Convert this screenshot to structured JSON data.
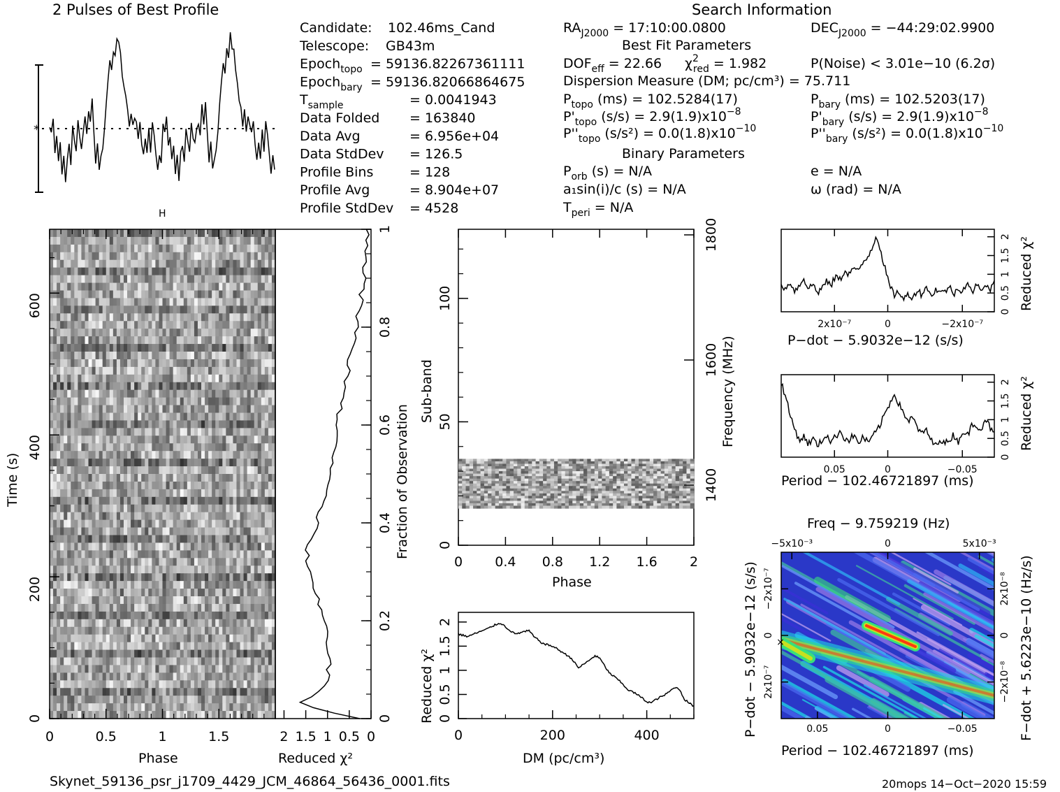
{
  "header": {
    "profile_title": "2 Pulses of Best Profile",
    "search_title": "Search Information",
    "best_fit_title": "Best Fit Parameters",
    "binary_title": "Binary Parameters"
  },
  "info_left": [
    {
      "label": "Candidate:",
      "value": "102.46ms_Cand"
    },
    {
      "label": "Telescope:",
      "value": "GB43m"
    },
    {
      "label": "Epoch",
      "sub": "topo",
      "value": "= 59136.82267361111"
    },
    {
      "label": "Epoch",
      "sub": "bary",
      "value": "= 59136.82066864675"
    },
    {
      "label": "T",
      "sub": "sample",
      "value": "=   0.0041943"
    },
    {
      "label": "Data Folded",
      "value": "=   163840"
    },
    {
      "label": "Data Avg",
      "value": "=   6.956e+04"
    },
    {
      "label": "Data StdDev",
      "value": "=   126.5"
    },
    {
      "label": "Profile Bins",
      "value": "=   128"
    },
    {
      "label": "Profile Avg",
      "value": "=   8.904e+07"
    },
    {
      "label": "Profile StdDev",
      "value": "=   4528"
    }
  ],
  "info_mid": {
    "ra": "RA",
    "ra_sub": "J2000",
    "ra_value": "= 17:10:00.0800",
    "dec": "DEC",
    "dec_sub": "J2000",
    "dec_value": "= −44:29:02.9900",
    "dof_line": "DOF",
    "dof_sub": "eff",
    "dof_value": "= 22.66",
    "chi_line": "χ",
    "chi_sub": "red",
    "chi_value": "= 1.982",
    "pnoise": "P(Noise) < 3.01e−10   (6.2σ)",
    "dm_line": "Dispersion Measure (DM; pc/cm³) = 75.711",
    "ptopo": "(ms) =  102.5284(17)",
    "pbary": "(ms) =  102.5203(17)",
    "pdtopo": "(s/s) =  2.9(1.9)x10",
    "pdbary": "(s/s) =  2.9(1.9)x10",
    "pdexp": "−8",
    "pddtopo": "(s/s²) = 0.0(1.8)x10",
    "pddbary": "(s/s²) = 0.0(1.8)x10",
    "pddexp": "−10",
    "porb": "(s) = N/A",
    "e": "e = N/A",
    "asini": "a₁sin(i)/c (s) = N/A",
    "omega": "ω (rad) = N/A",
    "tperi": "= N/A"
  },
  "footer": {
    "filename": "Skynet_59136_psr_j1709_4429_JCM_46864_56436_0001.fits",
    "stamp": "20mops 14−Oct−2020 15:59"
  },
  "chart_data": [
    {
      "type": "line",
      "name": "profile",
      "title": "2 Pulses of Best Profile",
      "xlim": [
        0,
        2
      ],
      "values": [
        0.05,
        -0.1,
        0.2,
        -0.35,
        -0.1,
        -0.55,
        -0.3,
        -0.75,
        -0.45,
        -0.9,
        -0.5,
        -0.3,
        -0.6,
        0.0,
        -0.2,
        -0.45,
        0.1,
        -0.1,
        -0.3,
        0.0,
        0.15,
        -0.1,
        0.35,
        0.1,
        0.5,
        -0.1,
        -0.55,
        -0.2,
        -0.75,
        -0.5,
        -0.3,
        -0.05,
        0.4,
        0.85,
        1.2,
        1.05,
        1.45,
        1.3,
        1.65,
        1.5,
        1.35,
        1.0,
        0.8,
        0.55,
        0.35,
        0.1,
        0.3,
        0.0,
        0.2,
        0.05,
        -0.15,
        0.1,
        -0.25,
        -0.5,
        -0.2,
        -0.45,
        0.0,
        -0.35,
        0.1,
        -0.2,
        -0.5,
        -0.8,
        -0.45,
        -0.7,
        0.05,
        -0.1,
        0.2,
        -0.35,
        -0.1,
        -0.55,
        -0.3,
        -0.75,
        -0.45,
        -0.9,
        -0.5,
        -0.3,
        -0.6,
        0.0,
        -0.2,
        -0.45,
        0.1,
        -0.1,
        -0.3,
        0.0,
        0.15,
        -0.1,
        0.35,
        0.1,
        0.5,
        -0.1,
        -0.55,
        -0.2,
        -0.75,
        -0.5,
        -0.3,
        -0.05,
        0.4,
        0.85,
        1.2,
        1.05,
        1.45,
        1.3,
        1.65,
        1.5,
        1.35,
        1.0,
        0.8,
        0.55,
        0.35,
        0.1,
        0.3,
        0.0,
        0.2,
        0.05,
        -0.15,
        0.1,
        -0.25,
        -0.5,
        -0.2,
        -0.45,
        0.0,
        -0.35,
        0.1,
        -0.2,
        -0.5,
        -0.8,
        -0.45,
        -0.7
      ]
    },
    {
      "type": "heatmap",
      "name": "time-phase",
      "xlabel": "Phase",
      "ylabel": "Time (s)",
      "xlim": [
        0,
        2
      ],
      "ylim": [
        0,
        690
      ],
      "xticks": [
        "0",
        "0.5",
        "1",
        "1.5"
      ],
      "yticks": [
        "0",
        "200",
        "400",
        "600"
      ]
    },
    {
      "type": "line",
      "name": "chi2-vs-time",
      "xlabel": "Reduced χ²",
      "ylabel": "Fraction of Observation",
      "xticks": [
        "2",
        "1.5",
        "1",
        "0.5",
        "0"
      ],
      "yticks": [
        "0",
        "0.2",
        "0.4",
        "0.6",
        "0.8",
        "1"
      ],
      "x": [
        0.0,
        0.03,
        0.06,
        0.09,
        0.12,
        0.15,
        0.18,
        0.22,
        0.26,
        0.3,
        0.35,
        0.4,
        0.45,
        0.5,
        0.55,
        0.6,
        0.65,
        0.7,
        0.75,
        0.8,
        0.85,
        0.9,
        0.95,
        1.0
      ],
      "y": [
        0.3,
        1.75,
        1.05,
        1.0,
        0.95,
        1.05,
        1.0,
        1.15,
        1.25,
        1.45,
        1.45,
        1.25,
        1.05,
        0.95,
        0.8,
        0.75,
        0.7,
        0.55,
        0.45,
        0.35,
        0.25,
        0.15,
        0.12,
        0.1
      ]
    },
    {
      "type": "heatmap",
      "name": "subband-phase",
      "xlabel": "Phase",
      "ylabel": "Sub-band",
      "y2label": "Frequency (MHz)",
      "xticks": [
        "0",
        "0.4",
        "0.8",
        "1.2",
        "1.6",
        "2"
      ],
      "yticks": [
        "0",
        "50",
        "100"
      ],
      "y2ticks": [
        "1400",
        "1600",
        "1800"
      ],
      "xlim": [
        0,
        2
      ],
      "ylim": [
        0,
        128
      ]
    },
    {
      "type": "line",
      "name": "dm-curve",
      "xlabel": "DM (pc/cm³)",
      "ylabel": "Reduced χ²",
      "xlim": [
        0,
        500
      ],
      "ylim": [
        0,
        2.2
      ],
      "xticks": [
        "0",
        "200",
        "400"
      ],
      "yticks": [
        "0",
        "0.5",
        "1",
        "1.5",
        "2"
      ],
      "x": [
        0,
        20,
        40,
        60,
        80,
        90,
        100,
        120,
        140,
        150,
        160,
        180,
        200,
        220,
        240,
        255,
        270,
        290,
        300,
        320,
        340,
        360,
        380,
        400,
        410,
        420,
        440,
        460,
        470,
        480,
        500
      ],
      "y": [
        1.75,
        1.7,
        1.78,
        1.85,
        1.95,
        1.98,
        1.9,
        1.75,
        1.8,
        1.82,
        1.7,
        1.55,
        1.5,
        1.38,
        1.25,
        1.05,
        1.15,
        1.3,
        1.25,
        0.95,
        0.8,
        0.6,
        0.5,
        0.35,
        0.33,
        0.4,
        0.5,
        0.65,
        0.6,
        0.4,
        0.25
      ]
    },
    {
      "type": "line",
      "name": "pdot-curve",
      "xlabel": "P−dot − 5.9032e−12 (s/s)",
      "ylabel": "Reduced χ²",
      "xticks": [
        "2x10⁻⁷",
        "0",
        "−2x10⁻⁷"
      ],
      "yticks": [
        "0",
        "0.5",
        "1",
        "1.5",
        "2"
      ],
      "ylim": [
        0,
        2.2
      ],
      "values": [
        0.75,
        0.6,
        0.8,
        0.55,
        0.7,
        0.9,
        0.6,
        0.75,
        0.5,
        0.65,
        0.8,
        0.7,
        0.95,
        0.85,
        1.1,
        1.0,
        1.2,
        1.05,
        1.3,
        1.45,
        1.7,
        2.05,
        1.6,
        1.1,
        0.65,
        0.45,
        0.55,
        0.3,
        0.5,
        0.35,
        0.6,
        0.45,
        0.7,
        0.4,
        0.6,
        0.55,
        0.5,
        0.7,
        0.45,
        0.65,
        0.55,
        0.8,
        0.5,
        0.7,
        0.6,
        0.75,
        0.55,
        0.85
      ]
    },
    {
      "type": "line",
      "name": "period-curve",
      "xlabel": "Period − 102.46721897 (ms)",
      "ylabel": "Reduced χ²",
      "xticks": [
        "0.05",
        "0",
        "−0.05"
      ],
      "yticks": [
        "0",
        "0.5",
        "1",
        "1.5",
        "2"
      ],
      "ylim": [
        0,
        2.2
      ],
      "values": [
        2.0,
        1.6,
        1.1,
        0.75,
        0.45,
        0.55,
        0.35,
        0.5,
        0.3,
        0.45,
        0.6,
        0.4,
        0.55,
        0.7,
        0.5,
        0.45,
        0.6,
        0.35,
        0.55,
        0.4,
        0.5,
        0.7,
        0.9,
        1.2,
        1.45,
        1.7,
        1.4,
        1.2,
        0.95,
        1.05,
        0.8,
        0.6,
        0.75,
        0.45,
        0.3,
        0.5,
        0.35,
        0.45,
        0.6,
        0.4,
        0.7,
        0.55,
        0.85,
        0.9,
        0.7,
        1.05,
        0.8,
        0.6
      ]
    },
    {
      "type": "heatmap",
      "name": "period-pdot",
      "title": "Freq − 9.759219 (Hz)",
      "xlabel": "Period − 102.46721897 (ms)",
      "ylabel": "P−dot − 5.9032e−12 (s/s)",
      "y2label": "F−dot + 5.6223e−10 (Hz/s)",
      "xticks": [
        "0.05",
        "0",
        "−0.05"
      ],
      "x2ticks": [
        "−5x10⁻³",
        "0",
        "5x10⁻³"
      ],
      "yticks": [
        "−2x10⁻⁷",
        "0",
        "2x10⁻⁷"
      ],
      "y2ticks": [
        "2x10⁻⁸",
        "0",
        "−2x10⁻⁸"
      ]
    }
  ]
}
